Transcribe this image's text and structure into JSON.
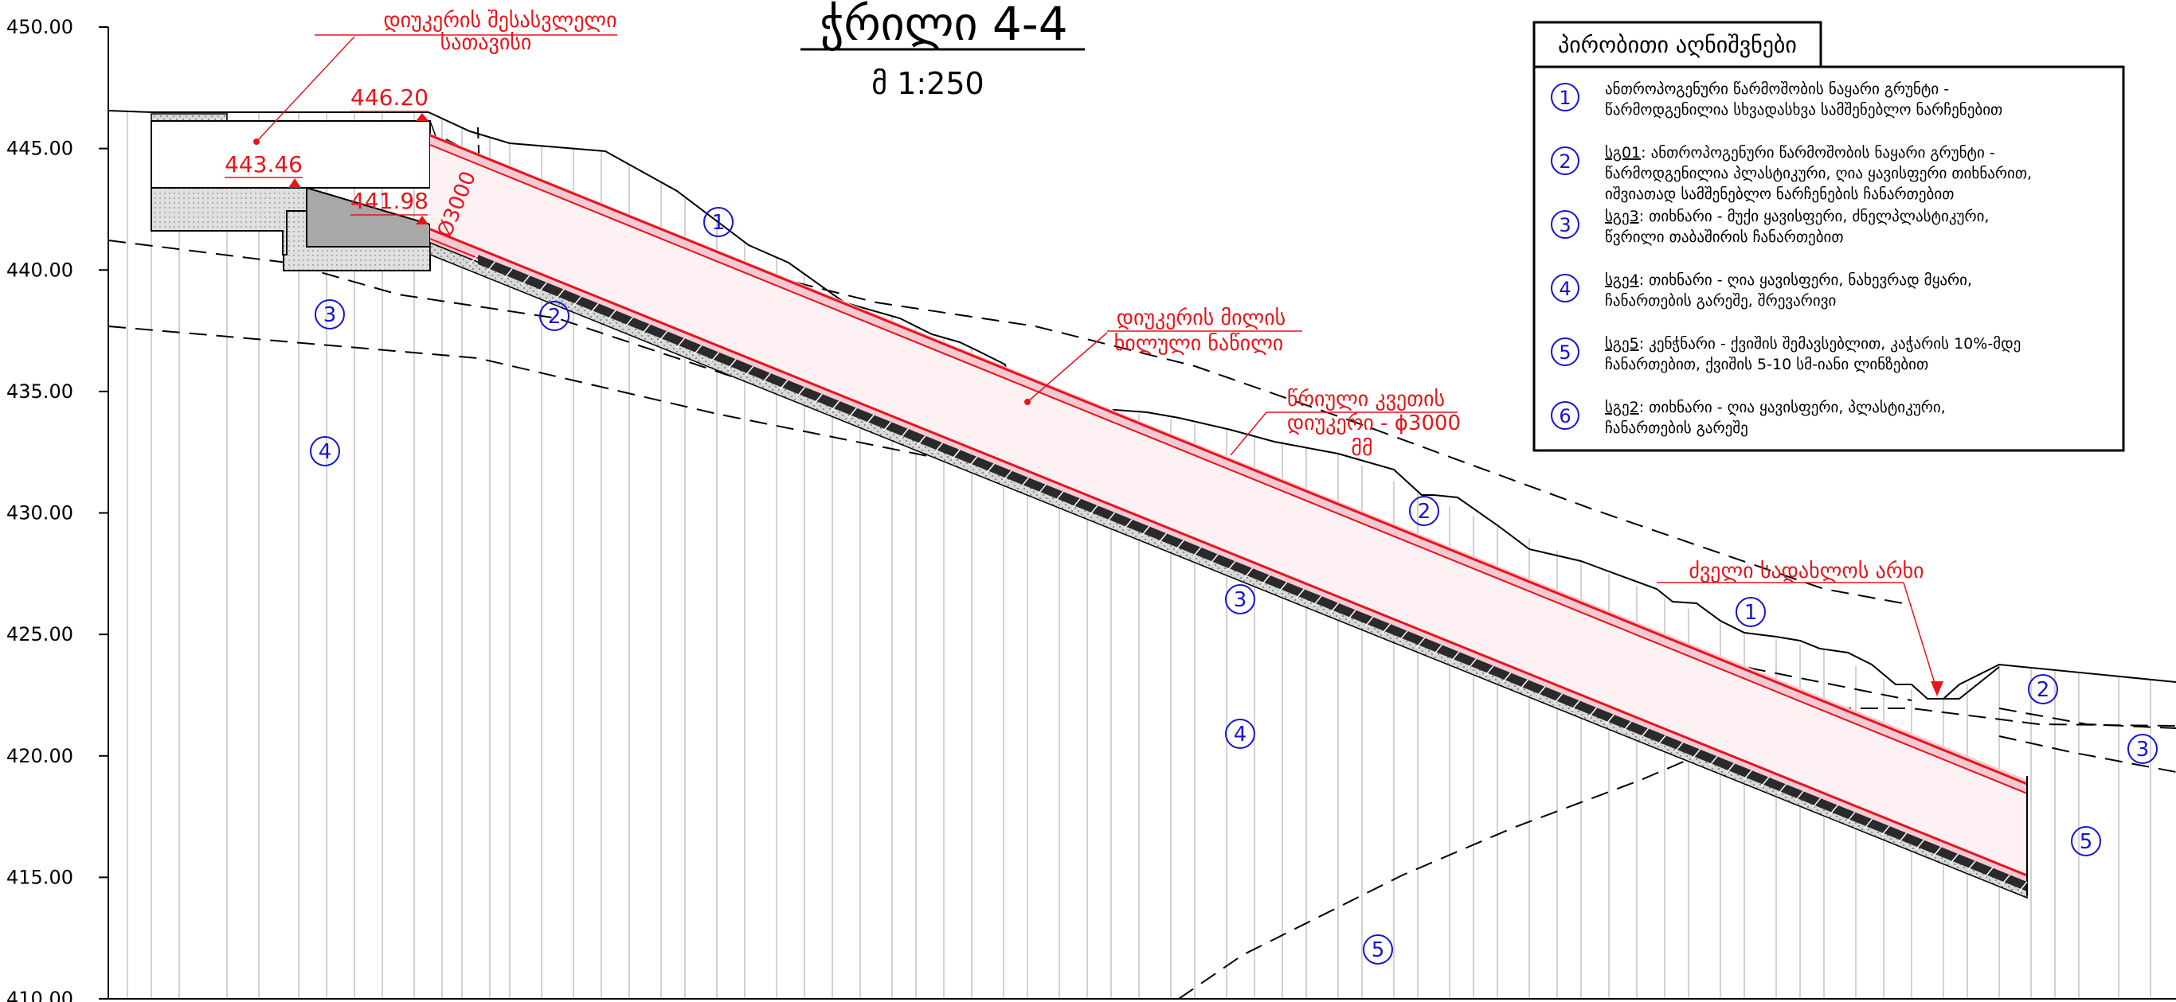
{
  "title": "ჭრილი 4-4",
  "scale": "მ 1:250",
  "y_axis": {
    "ticks": [
      "450.00",
      "445.00",
      "440.00",
      "435.00",
      "430.00",
      "425.00",
      "420.00",
      "415.00",
      "410.00"
    ],
    "range": [
      410,
      450
    ]
  },
  "annotations": {
    "headworks_line1": "დიუკერის შესასვლელი",
    "headworks_line2": "სათავისი",
    "visible_pipe_line1": "დიუკერის მილის",
    "visible_pipe_line2": "ხილული ნაწილი",
    "round_section_line1": "წრიული კვეთის",
    "round_section_line2": "დიუკერი - ϕ3000",
    "round_section_line3": "მმ",
    "old_canal": "ძველი სადახლოს არხი",
    "diameter_label": "Ø3000"
  },
  "elevations": {
    "top": "446.20",
    "inlet": "443.46",
    "invert": "441.98"
  },
  "layer_markers": {
    "m1a": "1",
    "m2a": "2",
    "m3a": "3",
    "m4a": "4",
    "m1b": "1",
    "m2b": "2",
    "m3b": "3",
    "m4b": "4",
    "m1c": "1",
    "m2c": "2",
    "m3c": "3",
    "m5a": "5",
    "m5b": "5"
  },
  "legend": {
    "title": "პირობითი აღნიშვნები",
    "items": [
      {
        "num": "1",
        "code": "",
        "line1": "ანთროპოგენური წარმოშობის ნაყარი გრუნტი -",
        "line2": "წარმოდგენილია სხვადასხვა სამშენებლო ნარჩენებით"
      },
      {
        "num": "2",
        "code": "სგ01",
        "line1": ": ანთროპოგენური წარმოშობის ნაყარი გრუნტი -",
        "line2": "წარმოდგენილია პლასტიკური, ღია ყავისფერი თიხნარით,",
        "line3": "იშვიათად სამშენებლო ნარჩენების ჩანართებით"
      },
      {
        "num": "3",
        "code": "სგე3",
        "line1": ": თიხნარი - მუქი ყავისფერი, ძნელპლასტიკური,",
        "line2": "წვრილი თაბაშირის ჩანართებით"
      },
      {
        "num": "4",
        "code": "სგე4",
        "line1": ": თიხნარი - ღია ყავისფერი, ნახევრად მყარი,",
        "line2": "ჩანართების გარეშე, შრევარივი"
      },
      {
        "num": "5",
        "code": "სგე5",
        "line1": ": კენჭნარი - ქვიშის შემავსებლით, კაჭარის 10%-მდე",
        "line2": "ჩანართებით, ქვიშის 5-10 სმ-იანი ლინზებით"
      },
      {
        "num": "6",
        "code": "სგე2",
        "line1": ": თიხნარი - ღია ყავისფერი, პლასტიკური,",
        "line2": "ჩანართების გარეშე"
      }
    ]
  },
  "colors": {
    "annotation": "#e8141b",
    "marker": "#1414d4",
    "line": "#000000",
    "pipe_fill": "#f3c9d3"
  }
}
